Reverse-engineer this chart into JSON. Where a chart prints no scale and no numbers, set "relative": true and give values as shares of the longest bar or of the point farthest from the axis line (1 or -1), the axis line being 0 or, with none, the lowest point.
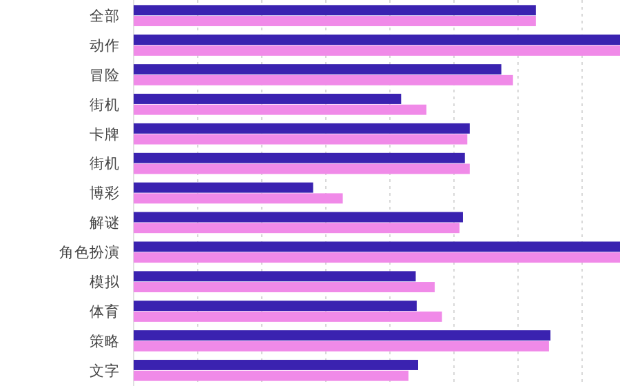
{
  "chart_data": {
    "type": "bar",
    "orientation": "horizontal",
    "relative": true,
    "grid": "x",
    "categories": [
      "全部",
      "动作",
      "冒险",
      "街机",
      "卡牌",
      "街机",
      "博彩",
      "解谜",
      "角色扮演",
      "模拟",
      "体育",
      "策略",
      "文字"
    ],
    "series": [
      {
        "color": "#3a22b0",
        "values": [
          0.827,
          1,
          0.756,
          0.55,
          0.691,
          0.681,
          0.369,
          0.677,
          1,
          0.58,
          0.582,
          0.857,
          0.585
        ]
      },
      {
        "color": "#f08ae8",
        "values": [
          0.827,
          1,
          0.78,
          0.602,
          0.686,
          0.691,
          0.43,
          0.67,
          1,
          0.619,
          0.634,
          0.854,
          0.565
        ]
      }
    ]
  }
}
